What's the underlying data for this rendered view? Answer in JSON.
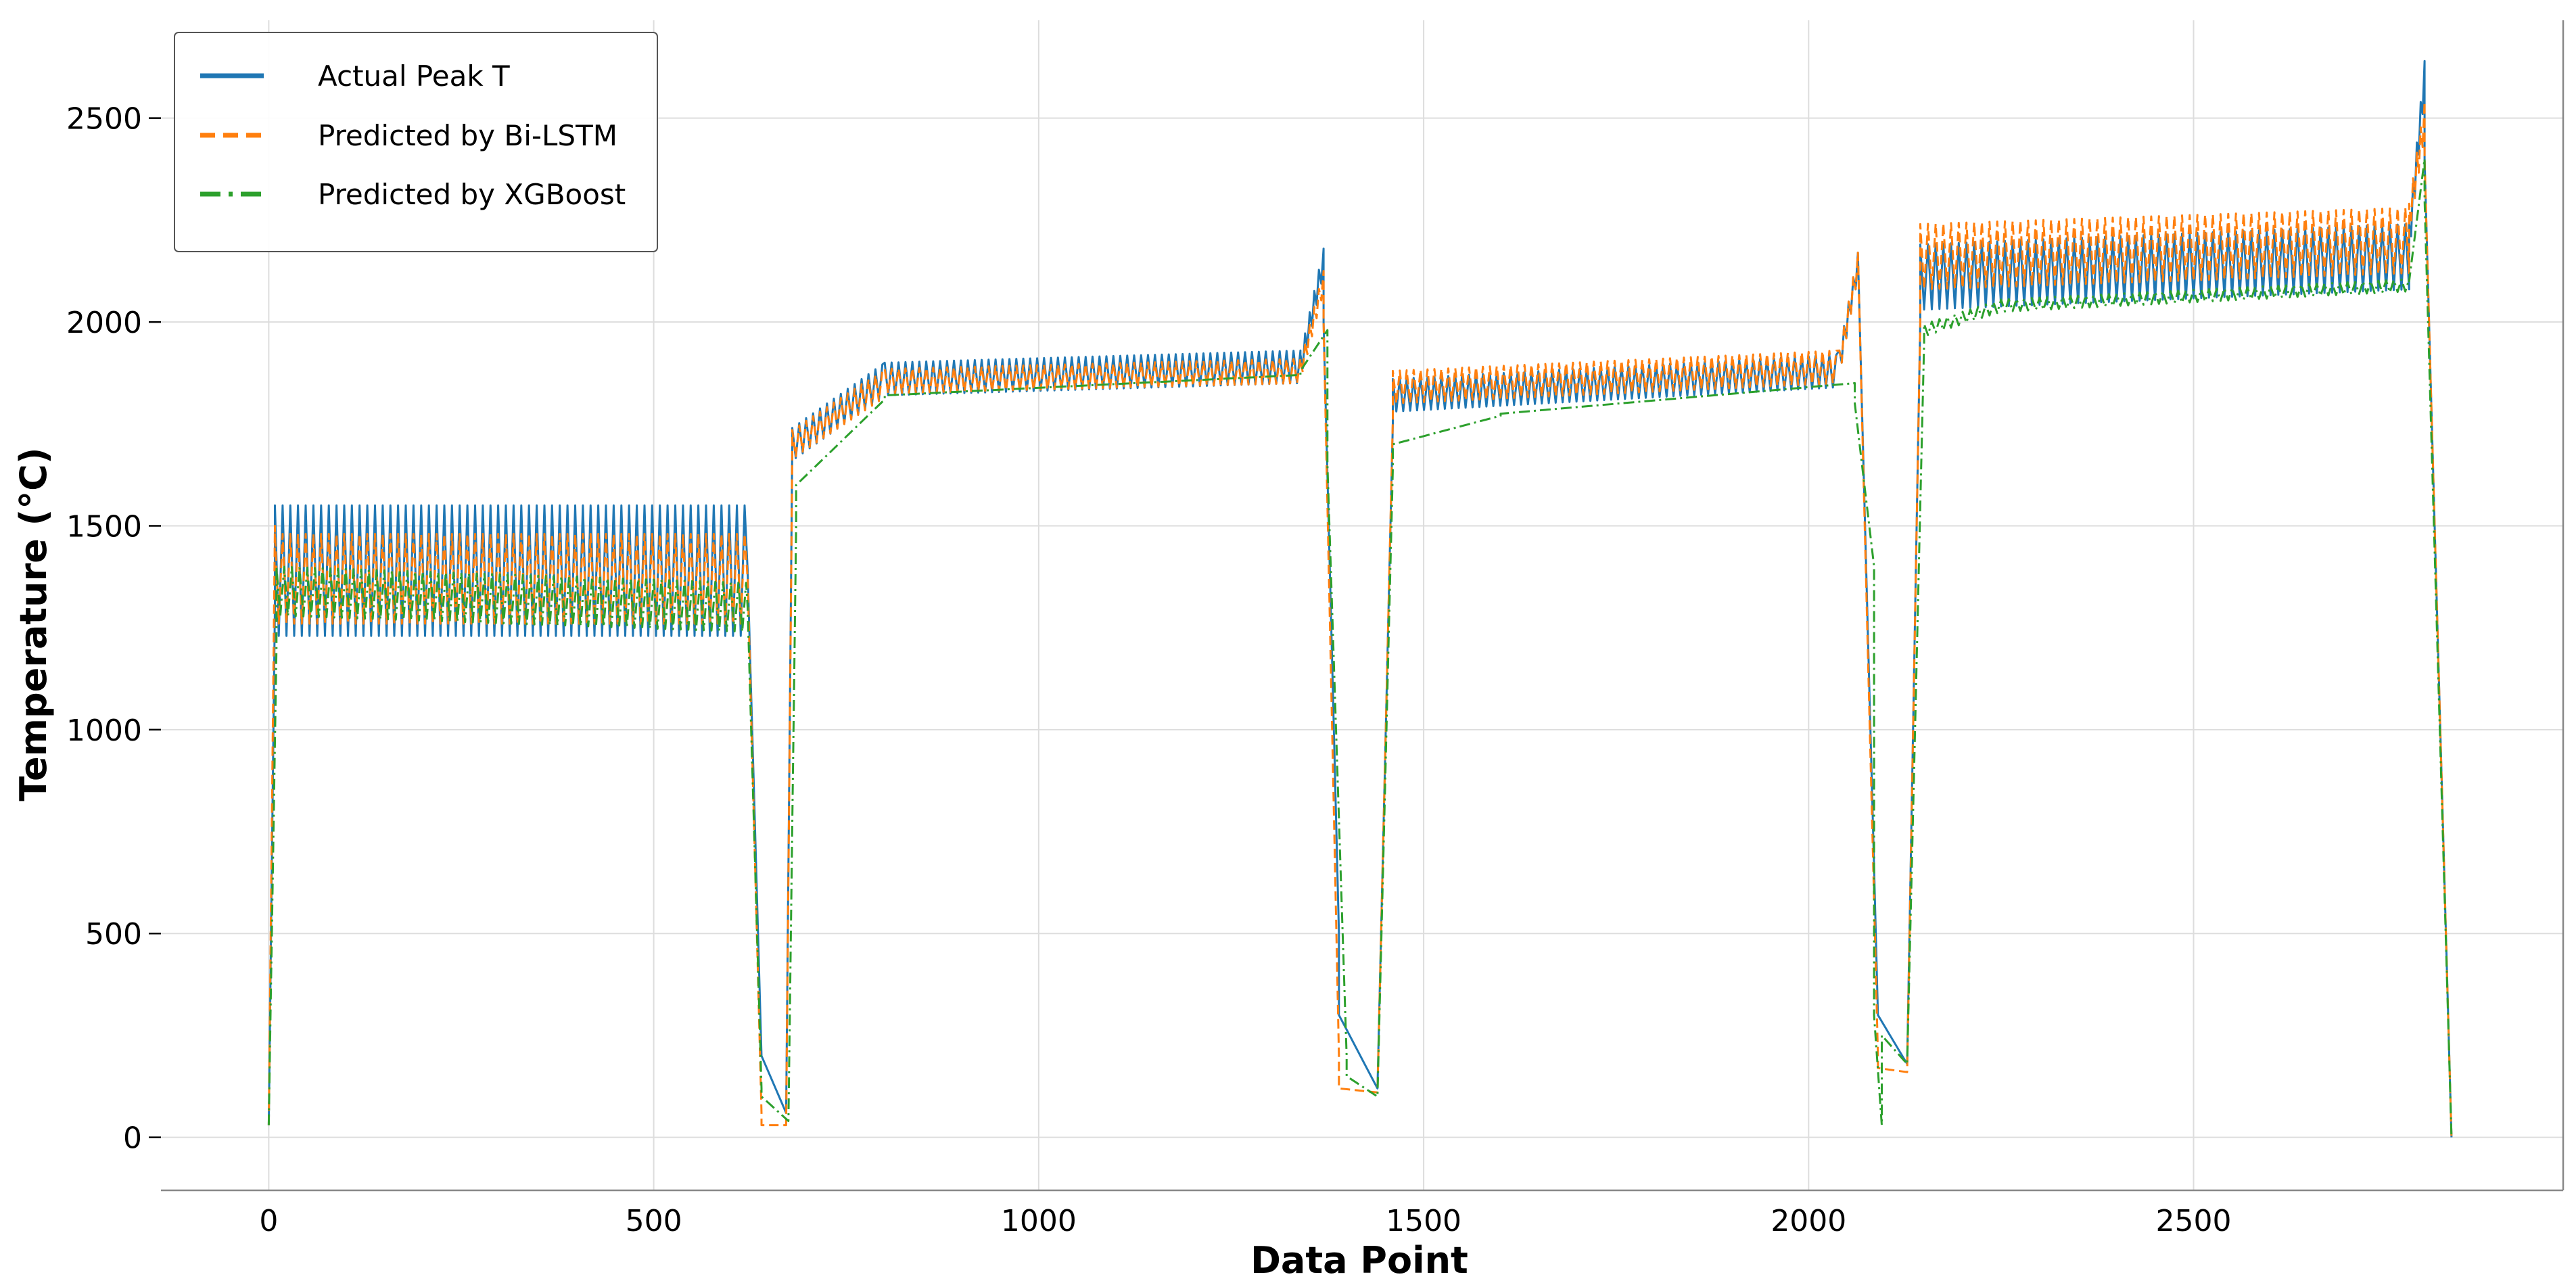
{
  "chart_data": {
    "type": "line",
    "title": "",
    "xlabel": "Data Point",
    "ylabel": "Temperature (°C)",
    "xlim": [
      -140,
      2980
    ],
    "ylim": [
      -130,
      2740
    ],
    "x_ticks": [
      0,
      500,
      1000,
      1500,
      2000,
      2500
    ],
    "y_ticks": [
      0,
      500,
      1000,
      1500,
      2000,
      2500
    ],
    "x_tick_labels": [
      "0",
      "500",
      "1000",
      "1500",
      "2000",
      "2500"
    ],
    "y_tick_labels": [
      "0",
      "500",
      "1000",
      "1500",
      "2000",
      "2500"
    ],
    "grid": true,
    "legend": {
      "position": "top-left"
    },
    "series": [
      {
        "name": "Actual Peak T",
        "color": "#1f77b4",
        "style": "solid",
        "segments": [
          {
            "x": [
              0,
              8
            ],
            "base": [
              30,
              1300
            ],
            "amp": 0
          },
          {
            "x": [
              8,
              622
            ],
            "base": [
              1390,
              1390
            ],
            "amp": 160,
            "period": 10
          },
          {
            "x": [
              622,
              640
            ],
            "base": [
              1390,
              200
            ],
            "amp": 0
          },
          {
            "x": [
              640,
              672
            ],
            "base": [
              200,
              60
            ],
            "amp": 0
          },
          {
            "x": [
              672,
              680
            ],
            "base": [
              60,
              1700
            ],
            "amp": 0
          },
          {
            "x": [
              680,
              800
            ],
            "base": [
              1700,
              1860
            ],
            "amp": 40,
            "period": 9
          },
          {
            "x": [
              800,
              1340
            ],
            "base": [
              1860,
              1890
            ],
            "amp": 40,
            "period": 9
          },
          {
            "x": [
              1340,
              1370
            ],
            "base": [
              1890,
              2150
            ],
            "amp": 30,
            "period": 6
          },
          {
            "x": [
              1370,
              1390
            ],
            "base": [
              2000,
              500
            ],
            "amp": 0
          },
          {
            "x": [
              1390,
              1440
            ],
            "base": [
              300,
              120
            ],
            "amp": 0
          },
          {
            "x": [
              1440,
              1460
            ],
            "base": [
              120,
              1750
            ],
            "amp": 0
          },
          {
            "x": [
              1460,
              2040
            ],
            "base": [
              1820,
              1880
            ],
            "amp": 40,
            "period": 9
          },
          {
            "x": [
              2040,
              2065
            ],
            "base": [
              1900,
              2150
            ],
            "amp": 30,
            "period": 6
          },
          {
            "x": [
              2065,
              2090
            ],
            "base": [
              2100,
              300
            ],
            "amp": 0
          },
          {
            "x": [
              2090,
              2128
            ],
            "base": [
              300,
              180
            ],
            "amp": 0
          },
          {
            "x": [
              2128,
              2145
            ],
            "base": [
              180,
              2000
            ],
            "amp": 0
          },
          {
            "x": [
              2145,
              2780
            ],
            "base": [
              2110,
              2160
            ],
            "amp": 80,
            "period": 10
          },
          {
            "x": [
              2780,
              2800
            ],
            "base": [
              2200,
              2600
            ],
            "amp": 40,
            "period": 5
          },
          {
            "x": [
              2800,
              2835
            ],
            "base": [
              2400,
              0
            ],
            "amp": 0
          }
        ]
      },
      {
        "name": "Predicted by Bi-LSTM",
        "color": "#ff7f0e",
        "style": "dashed",
        "segments": [
          {
            "x": [
              0,
              8
            ],
            "base": [
              30,
              1500
            ],
            "amp": 0
          },
          {
            "x": [
              8,
              622
            ],
            "base": [
              1370,
              1370
            ],
            "amp": 110,
            "period": 10
          },
          {
            "x": [
              622,
              640
            ],
            "base": [
              1370,
              60
            ],
            "amp": 0
          },
          {
            "x": [
              640,
              672
            ],
            "base": [
              30,
              30
            ],
            "amp": 0
          },
          {
            "x": [
              672,
              680
            ],
            "base": [
              30,
              1680
            ],
            "amp": 0
          },
          {
            "x": [
              680,
              800
            ],
            "base": [
              1700,
              1850
            ],
            "amp": 35,
            "period": 9
          },
          {
            "x": [
              800,
              1340
            ],
            "base": [
              1855,
              1880
            ],
            "amp": 30,
            "period": 9
          },
          {
            "x": [
              1340,
              1370
            ],
            "base": [
              1880,
              2100
            ],
            "amp": 25,
            "period": 6
          },
          {
            "x": [
              1370,
              1390
            ],
            "base": [
              2000,
              200
            ],
            "amp": 0
          },
          {
            "x": [
              1390,
              1440
            ],
            "base": [
              120,
              110
            ],
            "amp": 0
          },
          {
            "x": [
              1440,
              1460
            ],
            "base": [
              110,
              1760
            ],
            "amp": 0
          },
          {
            "x": [
              1460,
              2040
            ],
            "base": [
              1840,
              1890
            ],
            "amp": 40,
            "period": 9
          },
          {
            "x": [
              2040,
              2065
            ],
            "base": [
              1900,
              2150
            ],
            "amp": 30,
            "period": 6
          },
          {
            "x": [
              2065,
              2090
            ],
            "base": [
              2100,
              200
            ],
            "amp": 0
          },
          {
            "x": [
              2090,
              2128
            ],
            "base": [
              170,
              160
            ],
            "amp": 0
          },
          {
            "x": [
              2128,
              2145
            ],
            "base": [
              160,
              2000
            ],
            "amp": 0
          },
          {
            "x": [
              2145,
              2780
            ],
            "base": [
              2160,
              2200
            ],
            "amp": 80,
            "period": 10
          },
          {
            "x": [
              2780,
              2800
            ],
            "base": [
              2250,
              2500
            ],
            "amp": 40,
            "period": 5
          },
          {
            "x": [
              2800,
              2835
            ],
            "base": [
              2400,
              0
            ],
            "amp": 0
          }
        ]
      },
      {
        "name": "Predicted by XGBoost",
        "color": "#2ca02c",
        "style": "dashdot",
        "segments": [
          {
            "x": [
              0,
              10
            ],
            "base": [
              30,
              1200
            ],
            "amp": 0
          },
          {
            "x": [
              10,
              622
            ],
            "base": [
              1340,
              1300
            ],
            "amp": 60,
            "period": 10
          },
          {
            "x": [
              622,
              640
            ],
            "base": [
              1300,
              120
            ],
            "amp": 0
          },
          {
            "x": [
              640,
              675
            ],
            "base": [
              100,
              40
            ],
            "amp": 0
          },
          {
            "x": [
              675,
              685
            ],
            "base": [
              40,
              1500
            ],
            "amp": 0
          },
          {
            "x": [
              685,
              800
            ],
            "base": [
              1600,
              1810
            ],
            "amp": 0
          },
          {
            "x": [
              800,
              1340
            ],
            "base": [
              1820,
              1870
            ],
            "amp": 0
          },
          {
            "x": [
              1340,
              1375
            ],
            "base": [
              1880,
              1980
            ],
            "amp": 0
          },
          {
            "x": [
              1375,
              1400
            ],
            "base": [
              1650,
              200
            ],
            "amp": 0
          },
          {
            "x": [
              1400,
              1440
            ],
            "base": [
              150,
              100
            ],
            "amp": 0
          },
          {
            "x": [
              1440,
              1460
            ],
            "base": [
              100,
              1640
            ],
            "amp": 0
          },
          {
            "x": [
              1460,
              1600
            ],
            "base": [
              1700,
              1770
            ],
            "amp": 0
          },
          {
            "x": [
              1600,
              2060
            ],
            "base": [
              1775,
              1850
            ],
            "amp": 0
          },
          {
            "x": [
              2060,
              2085
            ],
            "base": [
              1800,
              1400
            ],
            "amp": 0
          },
          {
            "x": [
              2085,
              2095
            ],
            "base": [
              300,
              30
            ],
            "amp": 0
          },
          {
            "x": [
              2095,
              2128
            ],
            "base": [
              250,
              180
            ],
            "amp": 0
          },
          {
            "x": [
              2128,
              2150
            ],
            "base": [
              180,
              1950
            ],
            "amp": 0
          },
          {
            "x": [
              2150,
              2250
            ],
            "base": [
              1980,
              2040
            ],
            "amp": 15,
            "period": 10
          },
          {
            "x": [
              2250,
              2780
            ],
            "base": [
              2040,
              2090
            ],
            "amp": 15,
            "period": 10
          },
          {
            "x": [
              2780,
              2800
            ],
            "base": [
              2100,
              2400
            ],
            "amp": 0
          },
          {
            "x": [
              2800,
              2835
            ],
            "base": [
              2300,
              0
            ],
            "amp": 0
          }
        ]
      }
    ]
  }
}
